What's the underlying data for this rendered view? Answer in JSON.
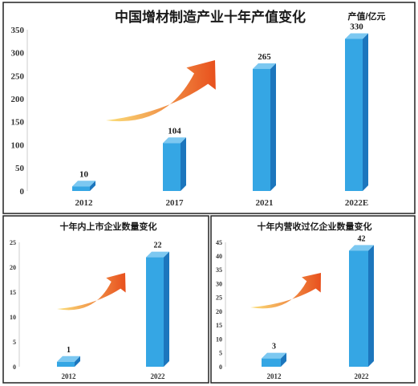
{
  "colors": {
    "bar_front": "#35a6e4",
    "bar_side": "#1c76bd",
    "bar_top": "#7cc8f1",
    "arrow_start": "#fbe07a",
    "arrow_end": "#e8501d",
    "axis_text": "#333333",
    "frame": "#222222",
    "background": "#ffffff"
  },
  "chart_data": [
    {
      "type": "bar",
      "title": "中国增材制造产业十年产值变化",
      "unit_label": "产值/亿元",
      "categories": [
        "2012",
        "2017",
        "2021",
        "2022E"
      ],
      "values": [
        10,
        104,
        265,
        330
      ],
      "data_labels": [
        "10",
        "104",
        "265",
        "330"
      ],
      "ylim": [
        0,
        350
      ],
      "yticks": [
        "0",
        "50",
        "100",
        "150",
        "200",
        "250",
        "300",
        "350"
      ],
      "grid": false,
      "decoration": "arrow"
    },
    {
      "type": "bar",
      "title": "十年内上市企业数量变化",
      "categories": [
        "2012",
        "2022"
      ],
      "values": [
        1,
        22
      ],
      "data_labels": [
        "1",
        "22"
      ],
      "ylim": [
        0,
        25
      ],
      "yticks": [
        "0",
        "5",
        "10",
        "15",
        "20",
        "25"
      ],
      "grid": false,
      "decoration": "arrow"
    },
    {
      "type": "bar",
      "title": "十年内营收过亿企业数量变化",
      "categories": [
        "2012",
        "2022"
      ],
      "values": [
        3,
        42
      ],
      "data_labels": [
        "3",
        "42"
      ],
      "ylim": [
        0,
        45
      ],
      "yticks": [
        "0",
        "5",
        "10",
        "15",
        "20",
        "25",
        "30",
        "35",
        "40",
        "45"
      ],
      "grid": false,
      "decoration": "arrow"
    }
  ]
}
